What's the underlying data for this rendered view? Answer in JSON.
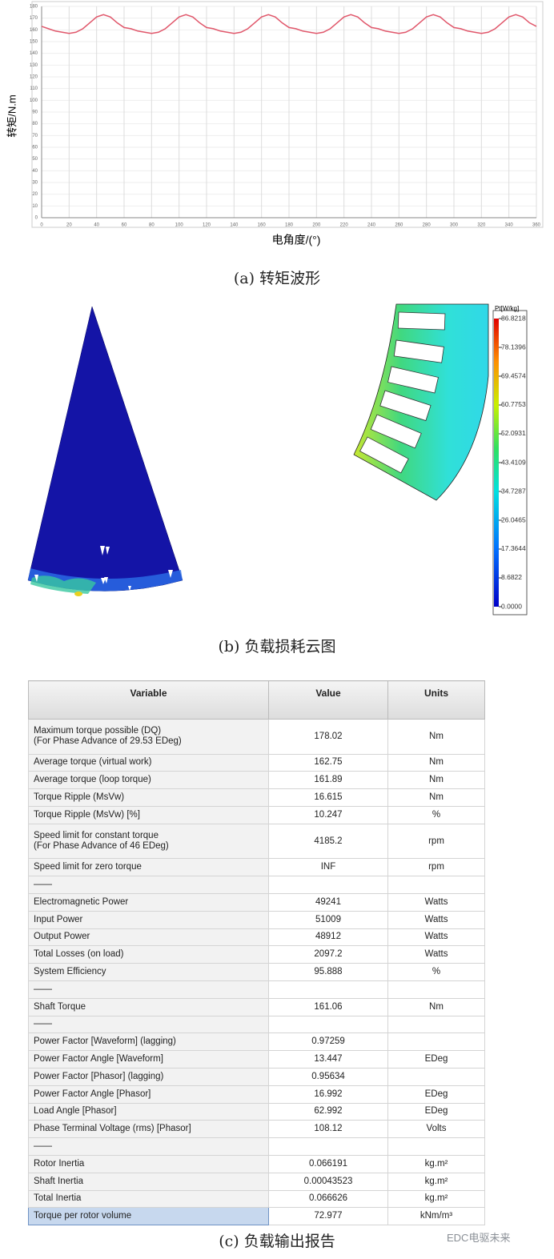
{
  "chart_data": {
    "type": "line",
    "ylabel": "转矩/N.m",
    "xlabel": "电角度/(°)",
    "caption": "(a) 转矩波形",
    "x": [
      0,
      5,
      10,
      15,
      20,
      25,
      30,
      35,
      40,
      45,
      50,
      55,
      60,
      65,
      70,
      75,
      80,
      85,
      90,
      95,
      100,
      105,
      110,
      115,
      120,
      125,
      130,
      135,
      140,
      145,
      150,
      155,
      160,
      165,
      170,
      175,
      180,
      185,
      190,
      195,
      200,
      205,
      210,
      215,
      220,
      225,
      230,
      235,
      240,
      245,
      250,
      255,
      260,
      265,
      270,
      275,
      280,
      285,
      290,
      295,
      300,
      305,
      310,
      315,
      320,
      325,
      330,
      335,
      340,
      345,
      350,
      355,
      360
    ],
    "series": [
      {
        "name": "转矩",
        "color": "#e0566a",
        "values": [
          163,
          161,
          159,
          158,
          157,
          158,
          161,
          166,
          171,
          173,
          171,
          166,
          162,
          161,
          159,
          158,
          157,
          158,
          161,
          166,
          171,
          173,
          171,
          166,
          162,
          161,
          159,
          158,
          157,
          158,
          161,
          166,
          171,
          173,
          171,
          166,
          162,
          161,
          159,
          158,
          157,
          158,
          161,
          166,
          171,
          173,
          171,
          166,
          162,
          161,
          159,
          158,
          157,
          158,
          161,
          166,
          171,
          173,
          171,
          166,
          162,
          161,
          159,
          158,
          157,
          158,
          161,
          166,
          171,
          173,
          171,
          166,
          163
        ]
      }
    ],
    "xlim": [
      0,
      360
    ],
    "xticks": [
      0,
      20,
      40,
      60,
      80,
      100,
      120,
      140,
      160,
      180,
      200,
      220,
      240,
      260,
      280,
      300,
      320,
      340,
      360
    ],
    "ylim": [
      0,
      180
    ],
    "yticks": [
      0,
      10,
      20,
      30,
      40,
      50,
      60,
      70,
      80,
      90,
      100,
      110,
      120,
      130,
      140,
      150,
      160,
      170,
      180
    ],
    "grid": true
  },
  "loss_map": {
    "caption": "(b) 负载损耗云图",
    "colorbar": {
      "title": "Pt[W/kg]",
      "lim": [
        0,
        86.8218
      ],
      "ticks": [
        86.8218,
        78.1396,
        69.4574,
        60.7753,
        52.0931,
        43.4109,
        34.7287,
        26.0465,
        17.3644,
        8.6822,
        {
          "value": 0,
          "label": "0.0000"
        }
      ]
    }
  },
  "report": {
    "caption": "(c) 负载输出报告",
    "columns": [
      "Variable",
      "Value",
      "Units"
    ],
    "rows": [
      [
        "Maximum torque possible (DQ)\n(For Phase Advance of 29.53 EDeg)",
        "178.02",
        "Nm"
      ],
      [
        "Average torque (virtual work)",
        "162.75",
        "Nm"
      ],
      [
        "Average torque (loop torque)",
        "161.89",
        "Nm"
      ],
      [
        "Torque Ripple (MsVw)",
        "16.615",
        "Nm"
      ],
      [
        "Torque Ripple (MsVw) [%]",
        "10.247",
        "%"
      ],
      [
        "Speed limit for constant torque\n(For Phase Advance of 46 EDeg)",
        "4185.2",
        "rpm"
      ],
      [
        "Speed limit for zero torque",
        "INF",
        "rpm"
      ],
      [
        "——"
      ],
      [
        "Electromagnetic Power",
        "49241",
        "Watts"
      ],
      [
        "Input Power",
        "51009",
        "Watts"
      ],
      [
        "Output Power",
        "48912",
        "Watts"
      ],
      [
        "Total Losses (on load)",
        "2097.2",
        "Watts"
      ],
      [
        "System Efficiency",
        "95.888",
        "%"
      ],
      [
        "——"
      ],
      [
        "Shaft Torque",
        "161.06",
        "Nm"
      ],
      [
        "——"
      ],
      [
        "Power Factor [Waveform] (lagging)",
        "0.97259"
      ],
      [
        "Power Factor Angle [Waveform]",
        "13.447",
        "EDeg"
      ],
      [
        "Power Factor [Phasor] (lagging)",
        "0.95634"
      ],
      [
        "Power Factor Angle [Phasor]",
        "16.992",
        "EDeg"
      ],
      [
        "Load Angle [Phasor]",
        "62.992",
        "EDeg"
      ],
      [
        "Phase Terminal Voltage (rms) [Phasor]",
        "108.12",
        "Volts"
      ],
      [
        "——"
      ],
      [
        "Rotor Inertia",
        "0.066191",
        "kg.m²"
      ],
      [
        "Shaft Inertia",
        "0.00043523",
        "kg.m²"
      ],
      [
        "Total Inertia",
        "0.066626",
        "kg.m²"
      ],
      [
        "Torque per rotor volume",
        "72.977",
        "kNm/m³"
      ]
    ]
  },
  "watermark": "EDC电驱未来"
}
